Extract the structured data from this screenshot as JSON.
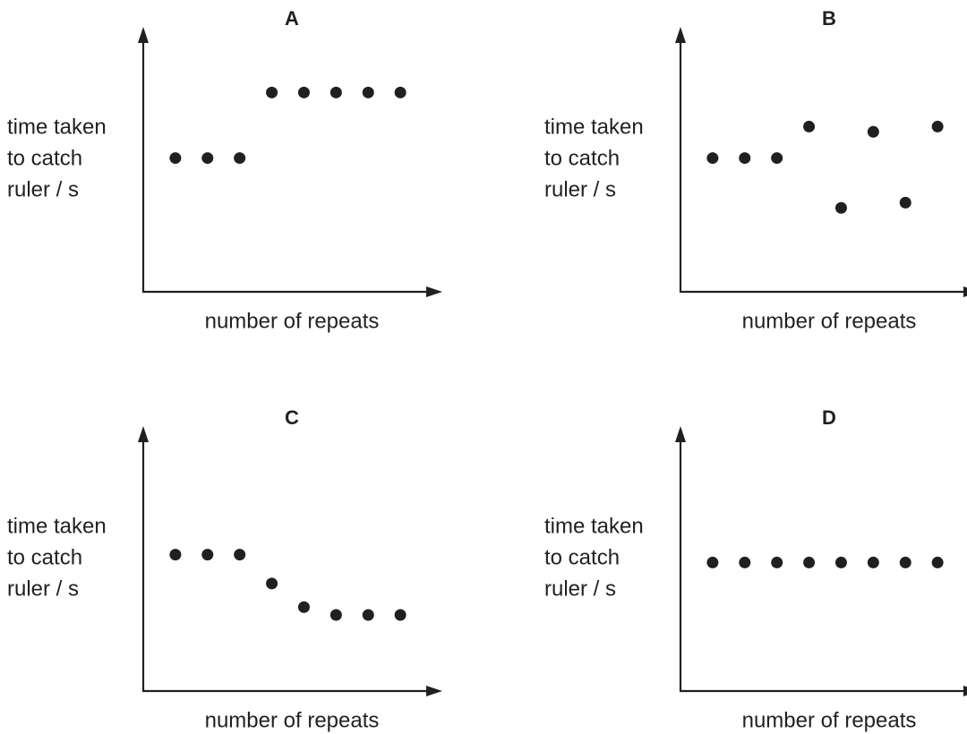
{
  "chart_data": [
    {
      "type": "scatter",
      "title": "A",
      "y_label": [
        "time taken",
        "to catch",
        "ruler / s"
      ],
      "x_label": "number of repeats",
      "x": [
        1,
        2,
        3,
        4,
        5,
        6,
        7,
        8
      ],
      "values": [
        5.1,
        5.1,
        5.1,
        7.6,
        7.6,
        7.6,
        7.6,
        7.6
      ],
      "color": "#231f20",
      "xlim": [
        0,
        9.25
      ],
      "ylim": [
        0,
        10
      ]
    },
    {
      "type": "scatter",
      "title": "B",
      "y_label": [
        "time taken",
        "to catch",
        "ruler / s"
      ],
      "x_label": "number of repeats",
      "x": [
        1,
        2,
        3,
        4,
        5,
        6,
        7,
        8
      ],
      "values": [
        5.1,
        5.1,
        5.1,
        6.3,
        3.2,
        6.1,
        3.4,
        6.3
      ],
      "color": "#231f20",
      "xlim": [
        0,
        9.25
      ],
      "ylim": [
        0,
        10
      ]
    },
    {
      "type": "scatter",
      "title": "C",
      "y_label": [
        "time taken",
        "to catch",
        "ruler / s"
      ],
      "x_label": "number of repeats",
      "x": [
        1,
        2,
        3,
        4,
        5,
        6,
        7,
        8
      ],
      "values": [
        5.2,
        5.2,
        5.2,
        4.1,
        3.2,
        2.9,
        2.9,
        2.9
      ],
      "color": "#231f20",
      "xlim": [
        0,
        9.25
      ],
      "ylim": [
        0,
        10
      ]
    },
    {
      "type": "scatter",
      "title": "D",
      "y_label": [
        "time taken",
        "to catch",
        "ruler / s"
      ],
      "x_label": "number of repeats",
      "x": [
        1,
        2,
        3,
        4,
        5,
        6,
        7,
        8
      ],
      "values": [
        4.9,
        4.9,
        4.9,
        4.9,
        4.9,
        4.9,
        4.9,
        4.9
      ],
      "color": "#231f20",
      "xlim": [
        0,
        9.25
      ],
      "ylim": [
        0,
        10
      ]
    }
  ]
}
